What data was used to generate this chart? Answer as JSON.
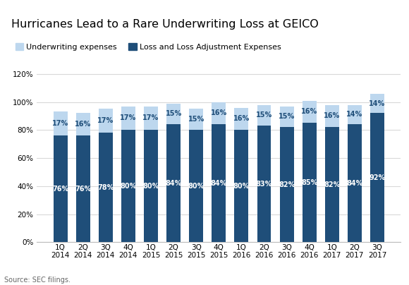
{
  "title": "Hurricanes Lead to a Rare Underwriting Loss at GEICO",
  "categories": [
    "1Q\n2014",
    "2Q\n2014",
    "3Q\n2014",
    "4Q\n2014",
    "1Q\n2015",
    "2Q\n2015",
    "3Q\n2015",
    "4Q\n2015",
    "1Q\n2016",
    "2Q\n2016",
    "3Q\n2016",
    "4Q\n2016",
    "1Q\n2017",
    "2Q\n2017",
    "3Q\n2017"
  ],
  "loss_values": [
    76,
    76,
    78,
    80,
    80,
    84,
    80,
    84,
    80,
    83,
    82,
    85,
    82,
    84,
    92
  ],
  "expense_values": [
    17,
    16,
    17,
    17,
    17,
    15,
    15,
    16,
    16,
    15,
    15,
    16,
    16,
    14,
    14
  ],
  "loss_color": "#1f4e79",
  "expense_color": "#bdd7ee",
  "bar_width": 0.62,
  "ylim": [
    0,
    128
  ],
  "yticks": [
    0,
    20,
    40,
    60,
    80,
    100,
    120
  ],
  "ytick_labels": [
    "0%",
    "20%",
    "40%",
    "60%",
    "80%",
    "100%",
    "120%"
  ],
  "legend_labels": [
    "Underwriting expenses",
    "Loss and Loss Adjustment Expenses"
  ],
  "source_text": "Source: SEC filings.",
  "title_fontsize": 11.5,
  "label_fontsize": 7.0,
  "axis_fontsize": 7.5,
  "legend_fontsize": 8.0,
  "background_color": "#ffffff",
  "gridline_color": "#d9d9d9",
  "text_color_loss": "#ffffff",
  "text_color_expense": "#1f4e79"
}
